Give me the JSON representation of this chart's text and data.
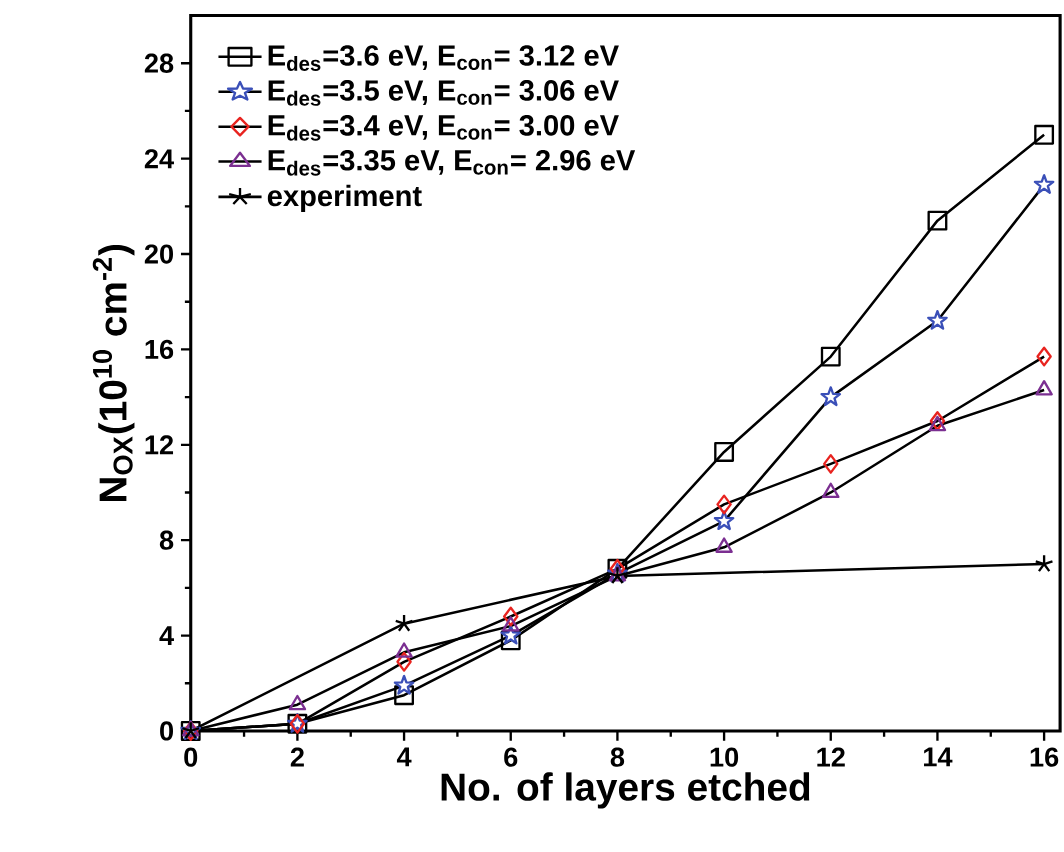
{
  "chart_data": {
    "type": "line",
    "xlabel": "No. of layers etched",
    "ylabel": "N$_{OX}$(10$^{10}$ cm$^{-2}$)",
    "xlim": [
      0,
      16.3
    ],
    "ylim": [
      0,
      30
    ],
    "xticks": [
      0,
      2,
      4,
      6,
      8,
      10,
      12,
      14,
      16
    ],
    "yticks": [
      0,
      4,
      8,
      12,
      16,
      20,
      24,
      28
    ],
    "legend": "top left",
    "x": [
      0,
      2,
      4,
      6,
      8,
      10,
      12,
      14,
      16
    ],
    "series": [
      {
        "name": "E$_{des}$=3.6 eV,  E$_{con}$= 3.12 eV",
        "color": "#000000",
        "marker": "square",
        "values": [
          0,
          0.3,
          1.5,
          3.8,
          6.8,
          11.7,
          15.7,
          21.4,
          25
        ]
      },
      {
        "name": "E$_{des}$=3.5 eV,  E$_{con}$= 3.06 eV",
        "color": "#3a4fb8",
        "marker": "star",
        "values": [
          0,
          0.3,
          1.9,
          4.0,
          6.6,
          8.8,
          14,
          17.2,
          22.9
        ]
      },
      {
        "name": "E$_{des}$=3.4 eV,  E$_{con}$= 3.00 eV",
        "color": "#e8231f",
        "marker": "diamond",
        "values": [
          0,
          0.3,
          2.9,
          4.8,
          6.8,
          9.5,
          11.2,
          13,
          15.7
        ]
      },
      {
        "name": "E$_{des}$=3.35 eV, E$_{con}$= 2.96 eV",
        "color": "#7b2f91",
        "marker": "triangle",
        "values": [
          0,
          1.1,
          3.3,
          4.4,
          6.5,
          7.7,
          10,
          12.8,
          14.3
        ]
      },
      {
        "name": "experiment",
        "color": "#000000",
        "marker": "cross",
        "x": [
          0,
          4,
          8,
          16
        ],
        "values": [
          0,
          4.5,
          6.5,
          7.0
        ]
      }
    ]
  }
}
